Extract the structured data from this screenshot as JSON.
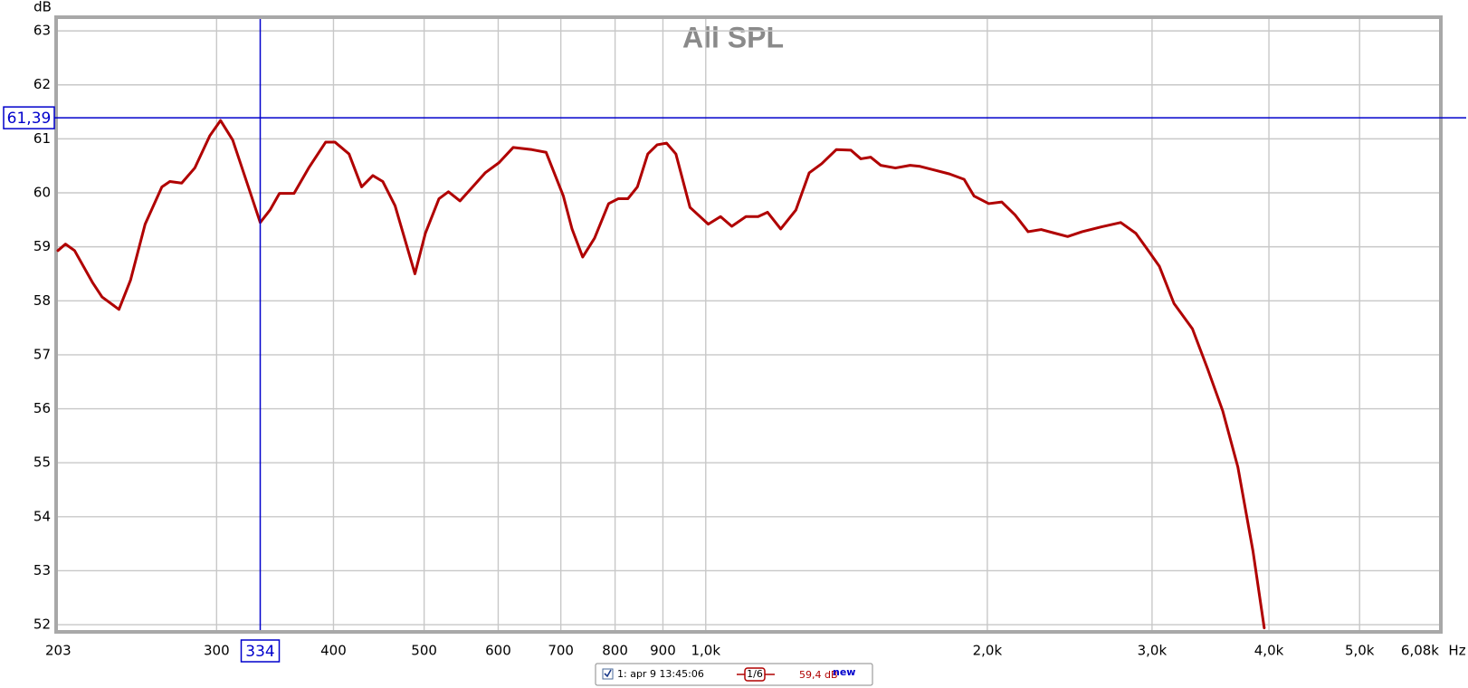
{
  "chart_data": {
    "type": "line",
    "title": "All SPL",
    "y_unit": "dB",
    "x_unit": "Hz",
    "xscale": "log",
    "grid": true,
    "xlim": [
      203,
      6080
    ],
    "ylim": [
      51.9,
      63.22
    ],
    "xticks": [
      203,
      300,
      400,
      500,
      600,
      700,
      800,
      900,
      {
        "value": 1000,
        "label": "1,0k"
      },
      {
        "value": 2000,
        "label": "2,0k"
      },
      {
        "value": 3000,
        "label": "3,0k"
      },
      {
        "value": 4000,
        "label": "4,0k"
      },
      {
        "value": 5000,
        "label": "5,0k"
      },
      {
        "value": 6080,
        "label": "6,08k"
      }
    ],
    "yticks": [
      52,
      53,
      54,
      55,
      56,
      57,
      58,
      59,
      60,
      61,
      62,
      63
    ],
    "x": [
      203,
      206.8,
      211.5,
      221.2,
      226.3,
      235.9,
      242.7,
      251.6,
      262.2,
      267.4,
      275.3,
      284.3,
      295.1,
      302.9,
      312.1,
      324.4,
      334,
      342.1,
      350.2,
      363,
      376.3,
      392.4,
      401.4,
      415.6,
      428.7,
      440.7,
      451.6,
      465.5,
      488.8,
      501.5,
      518.6,
      530.8,
      546.1,
      561.4,
      581,
      601.3,
      622.5,
      651.9,
      675.1,
      704.4,
      719.6,
      738.7,
      760.6,
      787.4,
      806.1,
      825.6,
      845.2,
      867.1,
      887.3,
      908.1,
      929.2,
      962,
      1006.3,
      1037.1,
      1066.2,
      1104,
      1137.7,
      1164.2,
      1202.7,
      1248.3,
      1290.1,
      1330.4,
      1378.9,
      1429.5,
      1464.8,
      1501.1,
      1538.3,
      1595,
      1653.8,
      1694.7,
      1757.1,
      1821.8,
      1889,
      1935.8,
      2007.1,
      2072.7,
      2141.3,
      2211,
      2283.6,
      2352,
      2437.2,
      2526.1,
      2649.3,
      2777.4,
      2882.7,
      2955.3,
      3054.2,
      3166.5,
      3313.5,
      3439.3,
      3569.9,
      3705.5,
      3846.2,
      3954
    ],
    "series": [
      {
        "name": "1: apr 9 13:45:06",
        "color": "#b00000",
        "values": [
          58.93,
          59.05,
          58.93,
          58.33,
          58.07,
          57.84,
          58.38,
          59.42,
          60.11,
          60.21,
          60.18,
          60.46,
          61.06,
          61.34,
          60.98,
          60.11,
          59.45,
          59.68,
          59.99,
          59.99,
          60.46,
          60.94,
          60.94,
          60.72,
          60.11,
          60.32,
          60.21,
          59.76,
          58.5,
          59.25,
          59.89,
          60.02,
          59.85,
          60.08,
          60.37,
          60.56,
          60.84,
          60.8,
          60.75,
          59.94,
          59.33,
          58.81,
          59.16,
          59.8,
          59.89,
          59.89,
          60.11,
          60.72,
          60.89,
          60.92,
          60.72,
          59.73,
          59.42,
          59.56,
          59.38,
          59.56,
          59.56,
          59.64,
          59.33,
          59.68,
          60.37,
          60.54,
          60.8,
          60.79,
          60.63,
          60.66,
          60.51,
          60.46,
          60.51,
          60.49,
          60.42,
          60.35,
          60.25,
          59.94,
          59.8,
          59.83,
          59.59,
          59.28,
          59.32,
          59.26,
          59.19,
          59.28,
          59.37,
          59.45,
          59.25,
          58.99,
          58.64,
          57.95,
          57.48,
          56.74,
          55.96,
          54.92,
          53.36,
          51.94
        ]
      }
    ],
    "cursor": {
      "x": 334,
      "y": {
        "value": 61.39,
        "label": "61,39"
      },
      "color": "#0000cc"
    },
    "legend": {
      "smoothing": "1/6",
      "level": "59,4 dB",
      "badge": "new"
    }
  }
}
